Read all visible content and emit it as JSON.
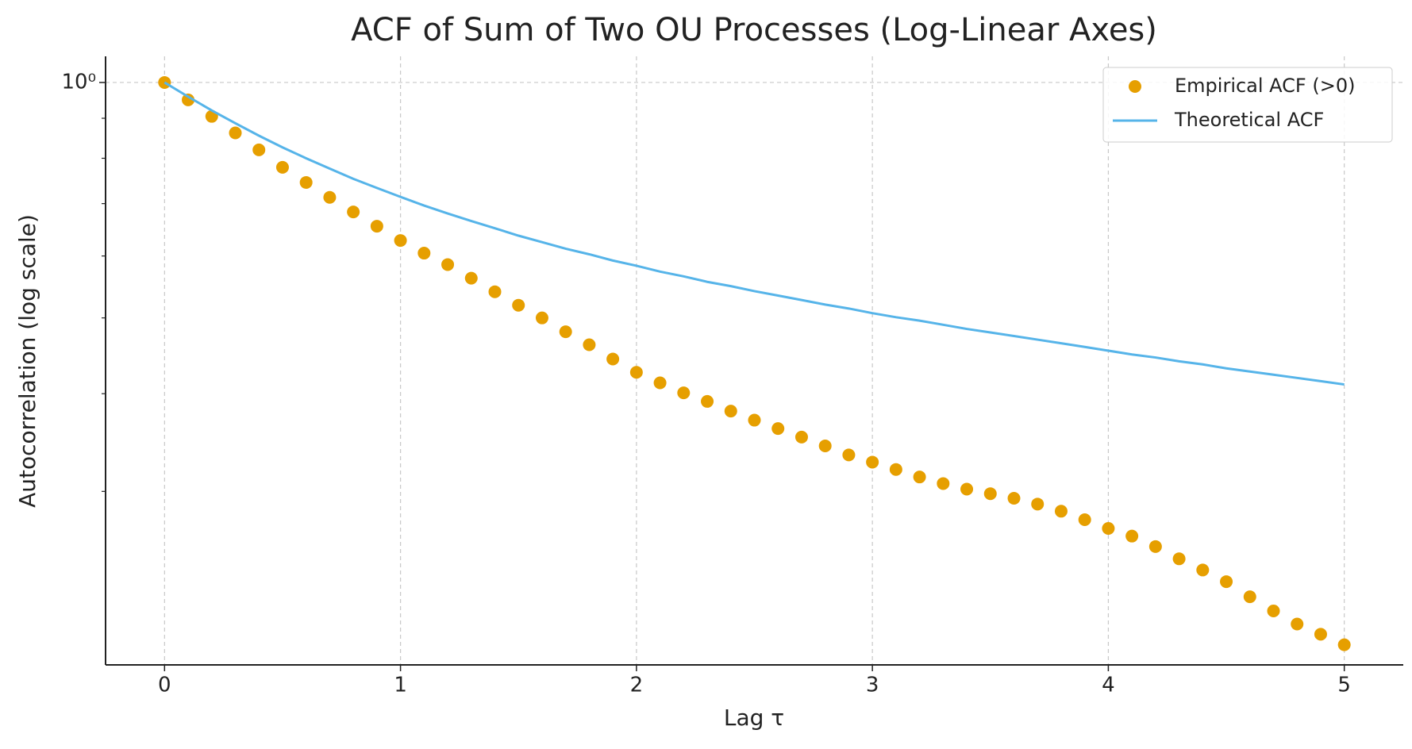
{
  "chart_data": {
    "type": "line",
    "title": "ACF of Sum of Two OU Processes (Log-Linear Axes)",
    "x_label": "Lag τ",
    "y_label": "Autocorrelation (log scale)",
    "x": [
      0,
      0.1,
      0.2,
      0.3,
      0.4,
      0.5,
      0.6,
      0.7,
      0.8,
      0.9,
      1,
      1.1,
      1.2,
      1.3,
      1.4,
      1.5,
      1.6,
      1.7,
      1.8,
      1.9,
      2,
      2.1,
      2.2,
      2.3,
      2.4,
      2.5,
      2.6,
      2.7,
      2.8,
      2.9,
      3,
      3.1,
      3.2,
      3.3,
      3.4,
      3.5,
      3.6,
      3.7,
      3.8,
      3.9,
      4,
      4.1,
      4.2,
      4.3,
      4.4,
      4.5,
      4.6,
      4.7,
      4.8,
      4.9,
      5
    ],
    "series": [
      {
        "name": "Empirical ACF (>0)",
        "color": "#e69f00",
        "style": "markers",
        "values": [
          1.0,
          0.95,
          0.905,
          0.862,
          0.82,
          0.779,
          0.745,
          0.713,
          0.683,
          0.655,
          0.628,
          0.605,
          0.585,
          0.562,
          0.54,
          0.519,
          0.5,
          0.48,
          0.462,
          0.443,
          0.426,
          0.413,
          0.401,
          0.391,
          0.38,
          0.37,
          0.361,
          0.352,
          0.343,
          0.334,
          0.327,
          0.32,
          0.313,
          0.307,
          0.302,
          0.298,
          0.294,
          0.289,
          0.283,
          0.276,
          0.269,
          0.263,
          0.255,
          0.246,
          0.238,
          0.23,
          0.22,
          0.211,
          0.203,
          0.197,
          0.191
        ]
      },
      {
        "name": "Theoretical ACF",
        "color": "#56b4e9",
        "style": "line",
        "values": [
          1.0,
          0.959,
          0.921,
          0.887,
          0.855,
          0.826,
          0.8,
          0.776,
          0.753,
          0.733,
          0.714,
          0.696,
          0.68,
          0.665,
          0.651,
          0.637,
          0.625,
          0.613,
          0.603,
          0.592,
          0.583,
          0.573,
          0.565,
          0.556,
          0.549,
          0.541,
          0.534,
          0.527,
          0.52,
          0.514,
          0.507,
          0.501,
          0.496,
          0.49,
          0.484,
          0.479,
          0.474,
          0.469,
          0.464,
          0.459,
          0.454,
          0.449,
          0.445,
          0.44,
          0.436,
          0.431,
          0.427,
          0.423,
          0.419,
          0.415,
          0.411
        ]
      }
    ],
    "xlim": [
      -0.25,
      5.25
    ],
    "xticks": [
      0,
      1,
      2,
      3,
      4,
      5
    ],
    "ylim": [
      0.18,
      1.08
    ],
    "log_y": true,
    "yticks": [
      {
        "value": 1,
        "label": "10⁰"
      }
    ],
    "y_minor_ticks": [
      0.3,
      0.4,
      0.5,
      0.6,
      0.7,
      0.8,
      0.9
    ],
    "grid": true,
    "legend": "upper right"
  }
}
